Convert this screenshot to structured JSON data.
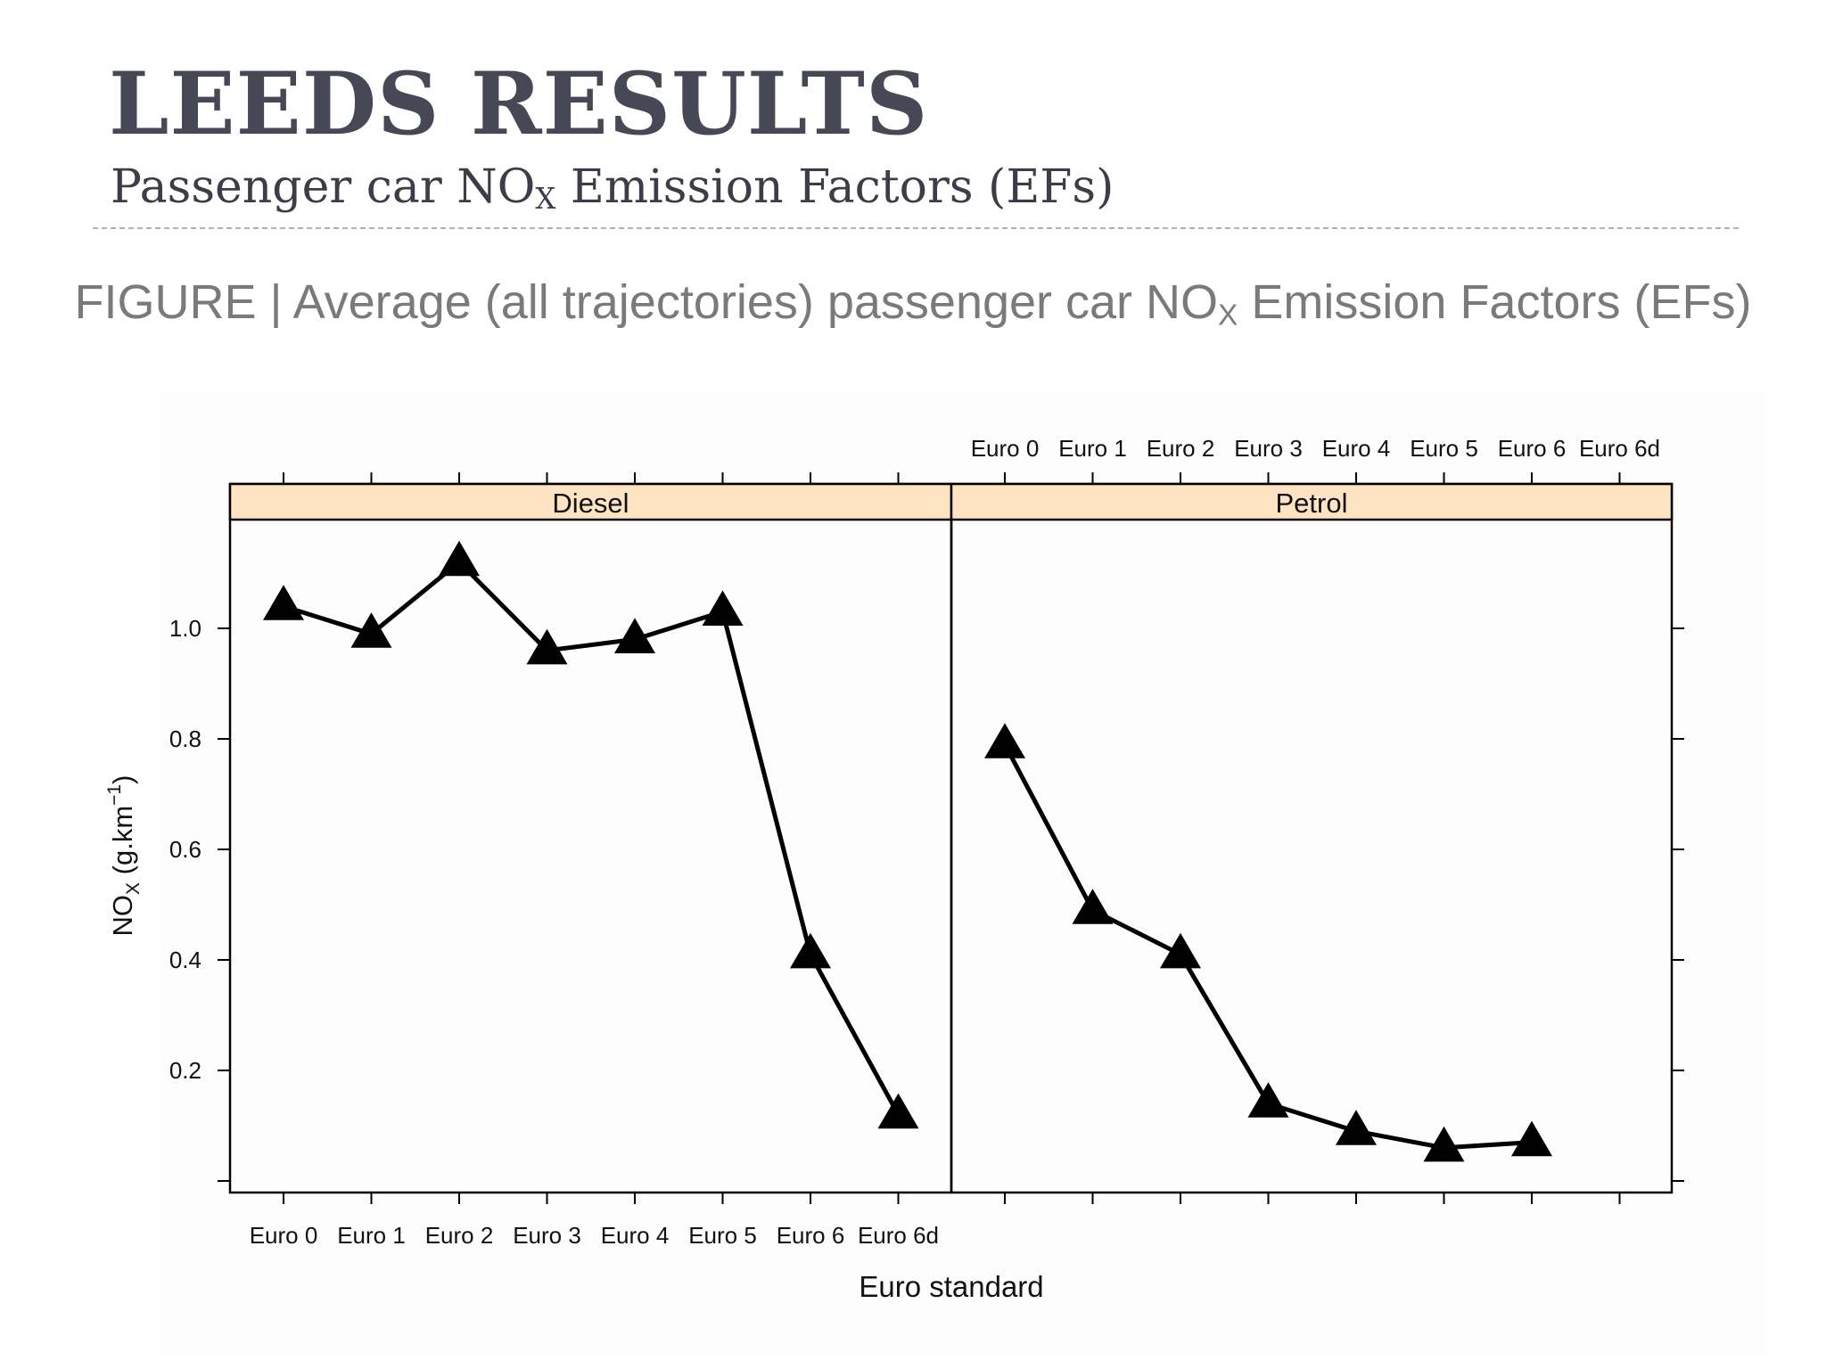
{
  "slide": {
    "title": "LEEDS RESULTS",
    "subtitle_main": "Passenger car NO",
    "subtitle_sub": "X",
    "subtitle_rest": " Emission Factors (EFs)",
    "caption_main": "FIGURE | Average (all trajectories) passenger car NO",
    "caption_sub": "X",
    "caption_rest": " Emission Factors (EFs)"
  },
  "chart_data": {
    "type": "line",
    "categories": [
      "Euro 0",
      "Euro 1",
      "Euro 2",
      "Euro 3",
      "Euro 4",
      "Euro 5",
      "Euro 6",
      "Euro 6d"
    ],
    "panels": [
      {
        "name": "Diesel",
        "values": [
          1.04,
          0.99,
          1.12,
          0.96,
          0.98,
          1.03,
          0.41,
          0.12
        ]
      },
      {
        "name": "Petrol",
        "values": [
          0.79,
          0.49,
          0.41,
          0.14,
          0.09,
          0.06,
          0.07,
          null
        ]
      }
    ],
    "marker": "triangle",
    "xlabel": "Euro standard",
    "ylabel_main": "NO",
    "ylabel_sub": "X",
    "ylabel_rest": " (g.km",
    "ylabel_sup": "−1",
    "ylabel_end": ")",
    "yticks": [
      0.2,
      0.4,
      0.6,
      0.8,
      1.0
    ],
    "ylim": [
      0,
      1.2
    ],
    "strip_color": "#ffe4c4",
    "line_color": "#000000",
    "grid": false
  }
}
